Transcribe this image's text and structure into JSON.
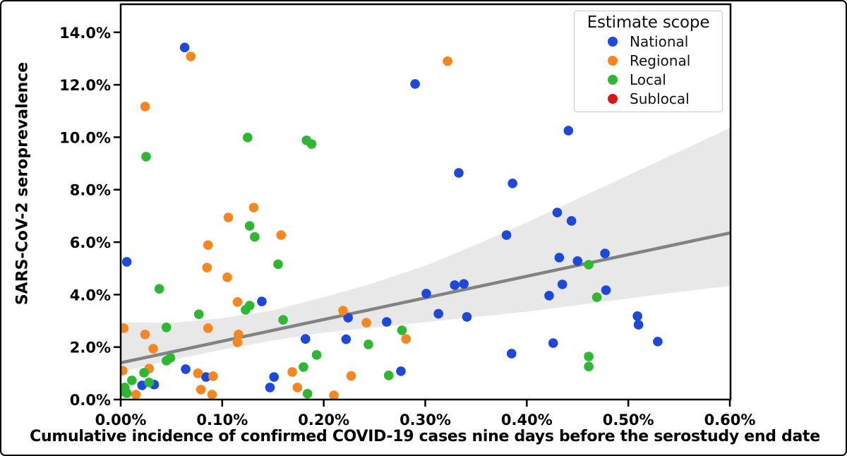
{
  "chart_data": {
    "type": "scatter",
    "xlabel": "Cumulative incidence of confirmed COVID-19 cases nine days before the serostudy end date",
    "ylabel": "SARS-CoV-2 seroprevalence",
    "value_units": "percent",
    "xlim": [
      0,
      0.6007
    ],
    "ylim": [
      0,
      15.07
    ],
    "grid": false,
    "x_ticks": {
      "values": [
        0,
        0.1,
        0.2,
        0.3,
        0.4,
        0.5,
        0.6
      ],
      "labels": [
        "0.00%",
        "0.10%",
        "0.20%",
        "0.30%",
        "0.40%",
        "0.50%",
        "0.60%"
      ]
    },
    "y_ticks": {
      "values": [
        0,
        2,
        4,
        6,
        8,
        10,
        12,
        14
      ],
      "labels": [
        "0.0%",
        "2.0%",
        "4.0%",
        "6.0%",
        "8.0%",
        "10.0%",
        "12.0%",
        "14.0%"
      ]
    },
    "legend": {
      "title": "Estimate scope",
      "position": "top-right",
      "entries": [
        {
          "label": "National",
          "color": "#1c49dc"
        },
        {
          "label": "Regional",
          "color": "#f5871e"
        },
        {
          "label": "Local",
          "color": "#2eb832"
        },
        {
          "label": "Sublocal",
          "color": "#dc1414"
        }
      ]
    },
    "series": [
      {
        "name": "National",
        "color": "#1c49dc",
        "points": [
          [
            0.063,
            13.42
          ],
          [
            0.29,
            12.03
          ],
          [
            0.333,
            8.64
          ],
          [
            0.386,
            8.24
          ],
          [
            0.441,
            10.25
          ],
          [
            0.43,
            7.13
          ],
          [
            0.444,
            6.81
          ],
          [
            0.38,
            6.27
          ],
          [
            0.006,
            5.25
          ],
          [
            0.139,
            3.74
          ],
          [
            0.301,
            4.04
          ],
          [
            0.329,
            4.36
          ],
          [
            0.338,
            4.41
          ],
          [
            0.313,
            3.27
          ],
          [
            0.341,
            3.15
          ],
          [
            0.224,
            3.12
          ],
          [
            0.262,
            2.96
          ],
          [
            0.222,
            2.3
          ],
          [
            0.182,
            2.31
          ],
          [
            0.385,
            1.75
          ],
          [
            0.276,
            1.08
          ],
          [
            0.432,
            5.41
          ],
          [
            0.45,
            5.28
          ],
          [
            0.477,
            5.57
          ],
          [
            0.435,
            4.39
          ],
          [
            0.422,
            3.96
          ],
          [
            0.478,
            4.17
          ],
          [
            0.509,
            3.18
          ],
          [
            0.51,
            2.85
          ],
          [
            0.529,
            2.21
          ],
          [
            0.426,
            2.15
          ],
          [
            0.064,
            1.16
          ],
          [
            0.084,
            0.86
          ],
          [
            0.151,
            0.86
          ],
          [
            0.147,
            0.46
          ],
          [
            0.021,
            0.54
          ],
          [
            0.033,
            0.57
          ]
        ]
      },
      {
        "name": "Regional",
        "color": "#f5871e",
        "points": [
          [
            0.069,
            13.08
          ],
          [
            0.024,
            11.17
          ],
          [
            0.322,
            12.9
          ],
          [
            0.131,
            7.32
          ],
          [
            0.106,
            6.94
          ],
          [
            0.158,
            6.27
          ],
          [
            0.086,
            5.89
          ],
          [
            0.085,
            5.03
          ],
          [
            0.105,
            4.66
          ],
          [
            0.115,
            3.72
          ],
          [
            0.116,
            2.48
          ],
          [
            0.115,
            2.18
          ],
          [
            0.003,
            2.72
          ],
          [
            0.024,
            2.48
          ],
          [
            0.086,
            2.72
          ],
          [
            0.032,
            1.94
          ],
          [
            0.028,
            1.18
          ],
          [
            0.002,
            1.1
          ],
          [
            0.076,
            1.0
          ],
          [
            0.091,
            0.89
          ],
          [
            0.169,
            1.05
          ],
          [
            0.174,
            0.46
          ],
          [
            0.079,
            0.38
          ],
          [
            0.09,
            0.19
          ],
          [
            0.015,
            0.19
          ],
          [
            0.21,
            0.16
          ],
          [
            0.227,
            0.9
          ],
          [
            0.281,
            2.31
          ],
          [
            0.219,
            3.39
          ],
          [
            0.242,
            2.93
          ]
        ]
      },
      {
        "name": "Local",
        "color": "#2eb832",
        "points": [
          [
            0.025,
            9.26
          ],
          [
            0.125,
            9.99
          ],
          [
            0.183,
            9.88
          ],
          [
            0.188,
            9.74
          ],
          [
            0.127,
            6.62
          ],
          [
            0.132,
            6.2
          ],
          [
            0.155,
            5.16
          ],
          [
            0.038,
            4.22
          ],
          [
            0.123,
            3.42
          ],
          [
            0.127,
            3.58
          ],
          [
            0.077,
            3.25
          ],
          [
            0.045,
            2.75
          ],
          [
            0.16,
            3.04
          ],
          [
            0.193,
            1.7
          ],
          [
            0.18,
            1.24
          ],
          [
            0.184,
            0.22
          ],
          [
            0.045,
            1.48
          ],
          [
            0.049,
            1.59
          ],
          [
            0.023,
            1.02
          ],
          [
            0.011,
            0.73
          ],
          [
            0.004,
            0.46
          ],
          [
            0.006,
            0.24
          ],
          [
            0.001,
            0.32
          ],
          [
            0.028,
            0.65
          ],
          [
            0.264,
            0.92
          ],
          [
            0.277,
            2.64
          ],
          [
            0.244,
            2.1
          ],
          [
            0.461,
            5.14
          ],
          [
            0.469,
            3.9
          ],
          [
            0.461,
            1.64
          ],
          [
            0.461,
            1.26
          ]
        ]
      },
      {
        "name": "Sublocal",
        "color": "#dc1414",
        "points": []
      }
    ],
    "trend_line": {
      "color": "#828282",
      "points": [
        [
          0,
          1.4
        ],
        [
          0.6,
          6.35
        ]
      ]
    },
    "confidence_band": {
      "color": "#e8e8e8",
      "upper": [
        [
          0,
          2.95
        ],
        [
          0.05,
          2.92
        ],
        [
          0.1,
          3.1
        ],
        [
          0.15,
          3.4
        ],
        [
          0.2,
          3.9
        ],
        [
          0.25,
          4.45
        ],
        [
          0.3,
          5.1
        ],
        [
          0.35,
          5.9
        ],
        [
          0.4,
          6.75
        ],
        [
          0.45,
          7.65
        ],
        [
          0.5,
          8.55
        ],
        [
          0.55,
          9.45
        ],
        [
          0.6,
          10.35
        ]
      ],
      "lower": [
        [
          0,
          1.05
        ],
        [
          0.05,
          1.5
        ],
        [
          0.1,
          1.9
        ],
        [
          0.15,
          2.25
        ],
        [
          0.2,
          2.55
        ],
        [
          0.25,
          2.75
        ],
        [
          0.3,
          2.95
        ],
        [
          0.35,
          3.15
        ],
        [
          0.4,
          3.35
        ],
        [
          0.45,
          3.6
        ],
        [
          0.5,
          3.85
        ],
        [
          0.55,
          4.1
        ],
        [
          0.6,
          4.33
        ]
      ]
    }
  }
}
